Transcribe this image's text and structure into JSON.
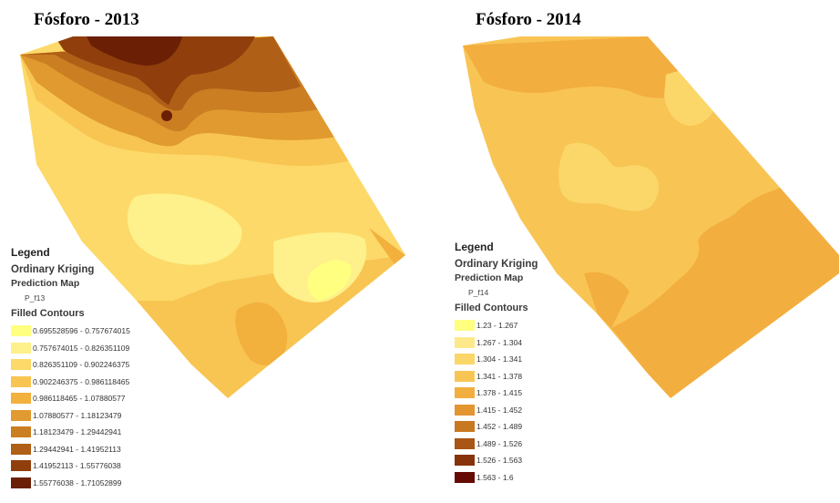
{
  "map_2013": {
    "title": "Fósforo - 2013",
    "legend": {
      "title": "Legend",
      "method": "Ordinary Kriging",
      "map_type": "Prediction Map",
      "layer": "P_f13",
      "contours_title": "Filled Contours",
      "classes": [
        {
          "range": "0.695528596 - 0.757674015",
          "color": "#ffff80"
        },
        {
          "range": "0.757674015 - 0.826351109",
          "color": "#fef08a"
        },
        {
          "range": "0.826351109 - 0.902246375",
          "color": "#fcd968"
        },
        {
          "range": "0.902246375 - 0.986118465",
          "color": "#f8c552"
        },
        {
          "range": "0.986118465 - 1.07880577",
          "color": "#f2b03d"
        },
        {
          "range": "1.07880577 - 1.18123479",
          "color": "#e09a2f"
        },
        {
          "range": "1.18123479 - 1.29442941",
          "color": "#cb7e22"
        },
        {
          "range": "1.29442941 - 1.41952113",
          "color": "#b05f17"
        },
        {
          "range": "1.41952113 - 1.55776038",
          "color": "#8f3e0c"
        },
        {
          "range": "1.55776038 - 1.71052899",
          "color": "#6b1f05"
        }
      ]
    }
  },
  "map_2014": {
    "title": "Fósforo - 2014",
    "legend": {
      "title": "Legend",
      "method": "Ordinary Kriging",
      "map_type": "Prediction Map",
      "layer": "P_f14",
      "contours_title": "Filled Contours",
      "classes": [
        {
          "range": "1.23 - 1.267",
          "color": "#ffff80"
        },
        {
          "range": "1.267 - 1.304",
          "color": "#fde98a"
        },
        {
          "range": "1.304 - 1.341",
          "color": "#fbd76a"
        },
        {
          "range": "1.341 - 1.378",
          "color": "#f8c555"
        },
        {
          "range": "1.378 - 1.415",
          "color": "#f3ae40"
        },
        {
          "range": "1.415 - 1.452",
          "color": "#e39530"
        },
        {
          "range": "1.452 - 1.489",
          "color": "#c97822"
        },
        {
          "range": "1.489 - 1.526",
          "color": "#a85515"
        },
        {
          "range": "1.526 - 1.563",
          "color": "#87320a"
        },
        {
          "range": "1.563 - 1.6",
          "color": "#650b03"
        }
      ]
    }
  }
}
